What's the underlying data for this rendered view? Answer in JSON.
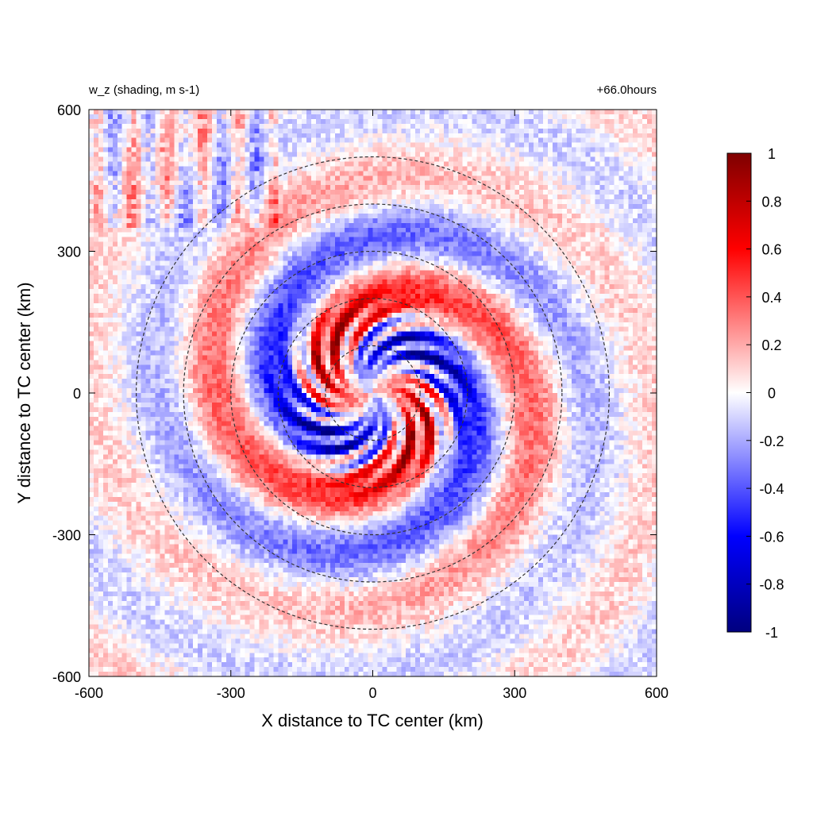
{
  "chart_data": {
    "type": "heatmap",
    "title_left": "w_z (shading, m s-1)",
    "title_right": "+66.0hours",
    "xlabel": "X distance to TC center (km)",
    "ylabel": "Y distance to TC center (km)",
    "xlim": [
      -600,
      600
    ],
    "ylim": [
      -600,
      600
    ],
    "xticks": [
      -600,
      -300,
      0,
      300,
      600
    ],
    "yticks": [
      -600,
      -300,
      0,
      300,
      600
    ],
    "xtick_labels": [
      "-600",
      "-300",
      "0",
      "300",
      "600"
    ],
    "ytick_labels": [
      "-600",
      "-300",
      "0",
      "300",
      "600"
    ],
    "contours": {
      "style": "dashed",
      "color": "#333333",
      "radii_km": [
        100,
        200,
        300,
        400,
        500
      ]
    },
    "colorbar": {
      "min": -1,
      "max": 1,
      "ticks": [
        -1,
        -0.8,
        -0.6,
        -0.4,
        -0.2,
        0,
        0.2,
        0.4,
        0.6,
        0.8,
        1
      ],
      "tick_labels": [
        "-1",
        "-0.8",
        "-0.6",
        "-0.4",
        "-0.2",
        "0",
        "0.2",
        "0.4",
        "0.6",
        "0.8",
        "1"
      ],
      "colors": [
        {
          "value": -1,
          "color": "#00007f"
        },
        {
          "value": -0.6,
          "color": "#0000ff"
        },
        {
          "value": 0,
          "color": "#ffffff"
        },
        {
          "value": 0.6,
          "color": "#ff0000"
        },
        {
          "value": 1,
          "color": "#7f0000"
        }
      ]
    },
    "field_pattern": "spiral rainbands of alternating positive (red) and negative (blue) vertical velocity around the storm center, strongest (|w| up to ~1) within ~200 km, weak noise elsewhere",
    "grid": false
  }
}
